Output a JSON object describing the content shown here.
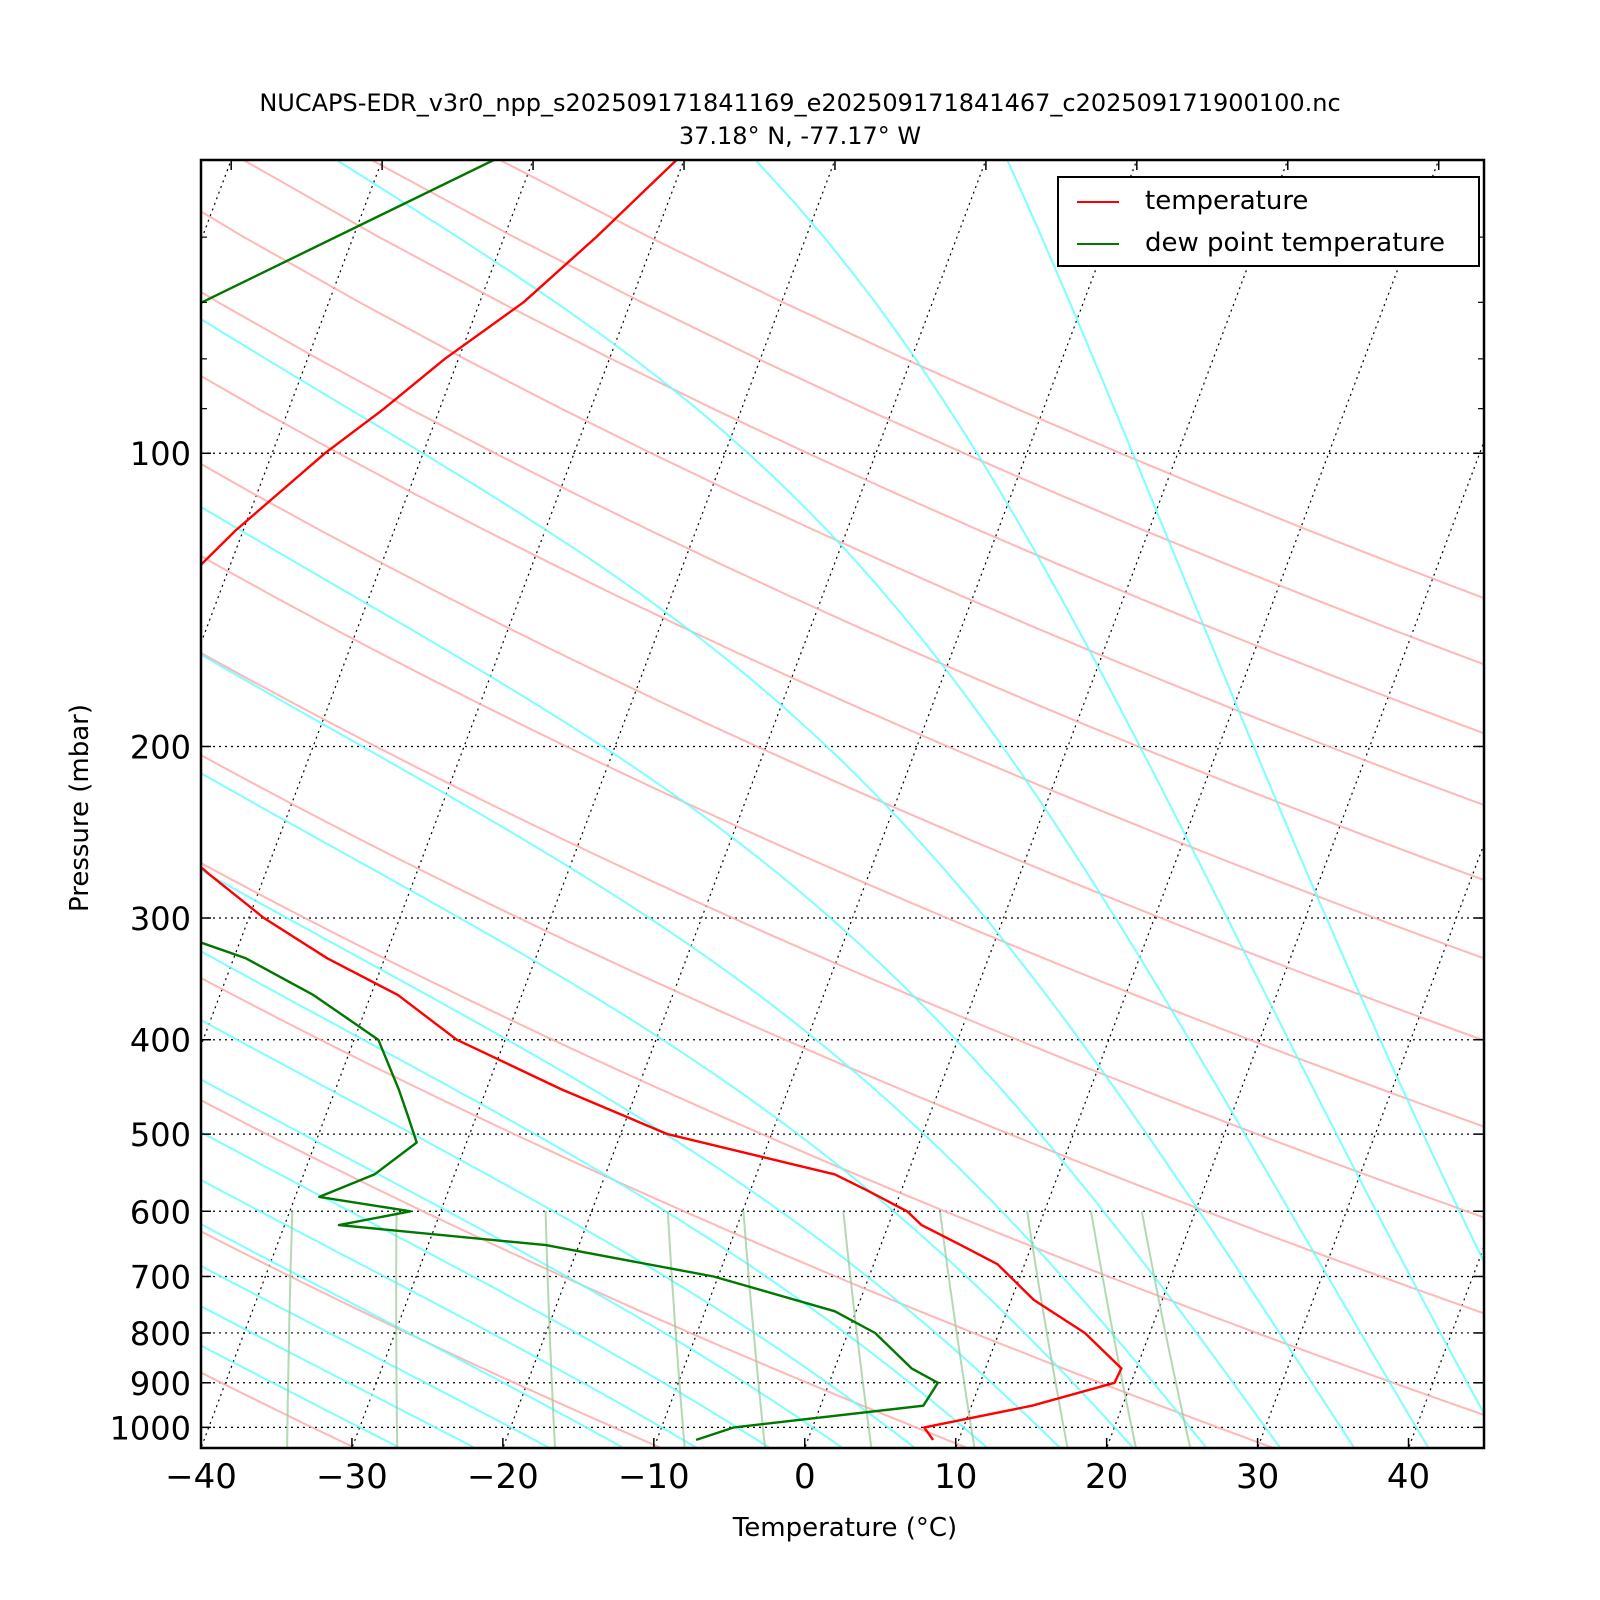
{
  "title": "NUCAPS-EDR_v3r0_npp_s202509171841169_e202509171841467_c202509171900100.nc",
  "subtitle": "37.18° N, -77.17° W",
  "colors": {
    "temperature": "#ff0000",
    "dewpoint": "#007700",
    "dry_adiabat": "#ffaaaa",
    "moist_adiabat": "#66ffff",
    "mixing_ratio": "#99cc99",
    "isotherm": "#000000"
  },
  "chart_data": {
    "type": "line",
    "subtype": "skew-T log-p diagram",
    "xlabel": "Temperature (°C)",
    "ylabel": "Pressure (mbar)",
    "xlim": [
      -40,
      45
    ],
    "ylim": [
      1050,
      50
    ],
    "y_scale": "log",
    "x_ticks": [
      -40,
      -30,
      -20,
      -10,
      0,
      10,
      20,
      30,
      40
    ],
    "x_tick_labels": [
      "−40",
      "−30",
      "−20",
      "−10",
      "0",
      "10",
      "20",
      "30",
      "40"
    ],
    "y_ticks": [
      100,
      200,
      300,
      400,
      500,
      600,
      700,
      800,
      900,
      1000
    ],
    "y_tick_labels": [
      "100",
      "200",
      "300",
      "400",
      "500",
      "600",
      "700",
      "800",
      "900",
      "1000"
    ],
    "grid": "dotted isobars at labeled pressures, skewed dotted isotherms every 10 °C",
    "legend": {
      "placement": "top-right",
      "entries": [
        "temperature",
        "dew point temperature"
      ]
    },
    "series": [
      {
        "name": "temperature",
        "pressure": [
          50,
          60,
          70,
          80,
          90,
          100,
          110,
          120,
          135,
          150,
          170,
          190,
          210,
          230,
          250,
          270,
          300,
          330,
          360,
          400,
          450,
          500,
          550,
          570,
          600,
          620,
          650,
          680,
          740,
          800,
          870,
          900,
          950,
          1000,
          1030
        ],
        "values": [
          -40.5,
          -43.9,
          -47.1,
          -50.9,
          -53.7,
          -56.5,
          -58.6,
          -60.5,
          -62.6,
          -63.8,
          -64.6,
          -64.6,
          -62.1,
          -59.9,
          -57.1,
          -53.8,
          -49.0,
          -43.8,
          -38.2,
          -33.2,
          -25.0,
          -16.9,
          -4.8,
          -2.4,
          0.9,
          2.2,
          5.3,
          8.2,
          11.5,
          15.7,
          19.0,
          18.9,
          14.0,
          7.4,
          8.3
        ]
      },
      {
        "name": "dew point temperature",
        "pressure": [
          50,
          70,
          100,
          120,
          135,
          150,
          170,
          190,
          230,
          270,
          300,
          330,
          360,
          400,
          450,
          480,
          510,
          550,
          580,
          600,
          620,
          650,
          700,
          760,
          800,
          870,
          900,
          950,
          1000,
          1030
        ],
        "values": [
          -52.6,
          -68.4,
          -84.7,
          -89.6,
          -92.0,
          -90.3,
          -88.4,
          -84.9,
          -78.4,
          -66.3,
          -57.8,
          -49.2,
          -43.8,
          -38.4,
          -35.8,
          -34.5,
          -33.3,
          -35.3,
          -38.4,
          -32.0,
          -36.4,
          -22.2,
          -10.3,
          -1.4,
          1.8,
          5.1,
          7.2,
          6.8,
          -5.2,
          -7.4
        ]
      }
    ],
    "dry_adiabats_theta_K": [
      200,
      220,
      240,
      260,
      280,
      300,
      320,
      340,
      360,
      380,
      400,
      420,
      440,
      460,
      480,
      500,
      520
    ],
    "moist_adiabats_theta_w_C": [
      -30,
      -25,
      -20,
      -15,
      -10,
      -5,
      0,
      5,
      10,
      15,
      20,
      25,
      30,
      35,
      40,
      45,
      50
    ],
    "mixing_ratio_lines_g_per_kg": [
      0.1,
      0.2,
      0.4,
      1,
      2,
      3,
      5,
      8,
      12,
      16,
      20
    ]
  }
}
